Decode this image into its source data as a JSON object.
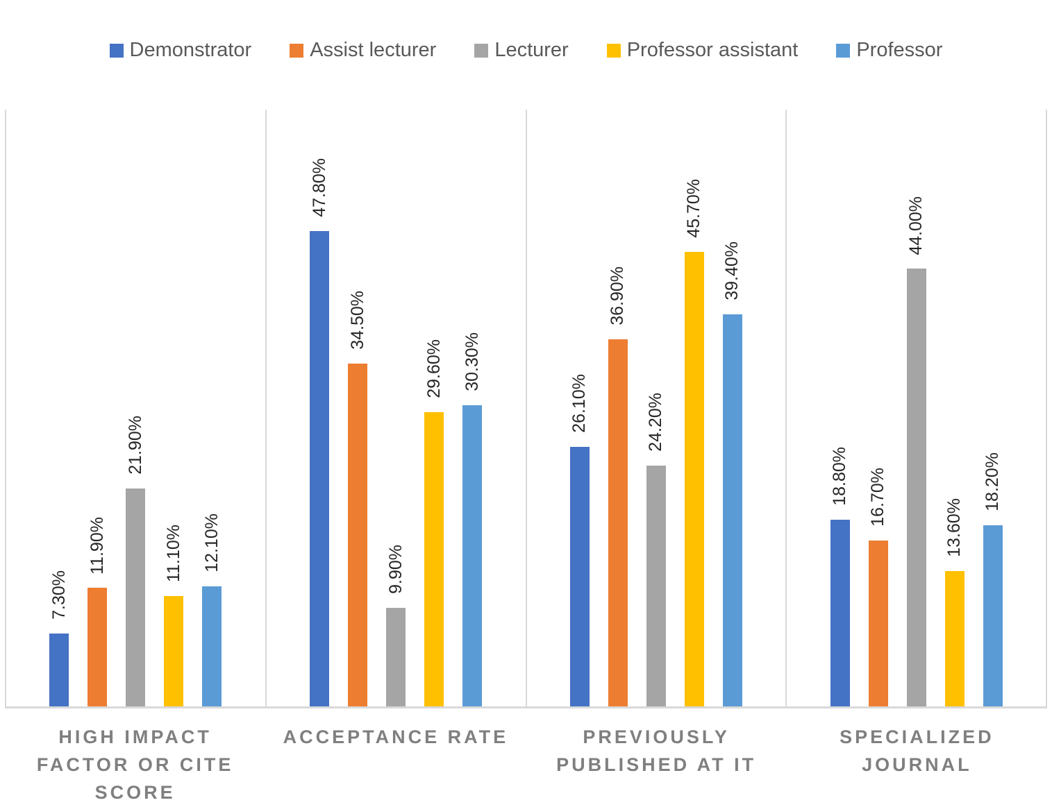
{
  "chart_data": {
    "type": "bar",
    "title": "",
    "xlabel": "",
    "ylabel": "",
    "ylim": [
      0,
      60
    ],
    "grid": "vertical category separators only, no horizontal gridlines, value axis hidden",
    "legend_position": "top",
    "categories": [
      "High impact factor or cite score",
      "Acceptance rate",
      "Previously published at it",
      "Specialized journal"
    ],
    "category_lines": [
      [
        "HIGH IMPACT",
        "FACTOR OR CITE",
        "SCORE"
      ],
      [
        "ACCEPTANCE RATE"
      ],
      [
        "PREVIOUSLY",
        "PUBLISHED AT IT"
      ],
      [
        "SPECIALIZED",
        "JOURNAL"
      ]
    ],
    "series": [
      {
        "name": "Demonstrator",
        "color": "#4472C4",
        "values": [
          7.3,
          47.8,
          26.1,
          18.8
        ],
        "labels": [
          "7.30%",
          "47.80%",
          "26.10%",
          "18.80%"
        ]
      },
      {
        "name": "Assist lecturer",
        "color": "#ED7D31",
        "values": [
          11.9,
          34.5,
          36.9,
          16.7
        ],
        "labels": [
          "11.90%",
          "34.50%",
          "36.90%",
          "16.70%"
        ]
      },
      {
        "name": "Lecturer",
        "color": "#A5A5A5",
        "values": [
          21.9,
          9.9,
          24.2,
          44.0
        ],
        "labels": [
          "21.90%",
          "9.90%",
          "24.20%",
          "44.00%"
        ]
      },
      {
        "name": "Professor assistant",
        "color": "#FFC000",
        "values": [
          11.1,
          29.6,
          45.7,
          13.6
        ],
        "labels": [
          "11.10%",
          "29.60%",
          "45.70%",
          "13.60%"
        ]
      },
      {
        "name": "Professor",
        "color": "#5B9BD5",
        "values": [
          12.1,
          30.3,
          39.4,
          18.2
        ],
        "labels": [
          "12.10%",
          "30.30%",
          "39.40%",
          "18.20%"
        ]
      }
    ],
    "colors": {
      "axis_line": "#D9D9D9",
      "data_label": "#262626",
      "category_label": "#7F7F7F",
      "legend_label": "#595959"
    }
  }
}
